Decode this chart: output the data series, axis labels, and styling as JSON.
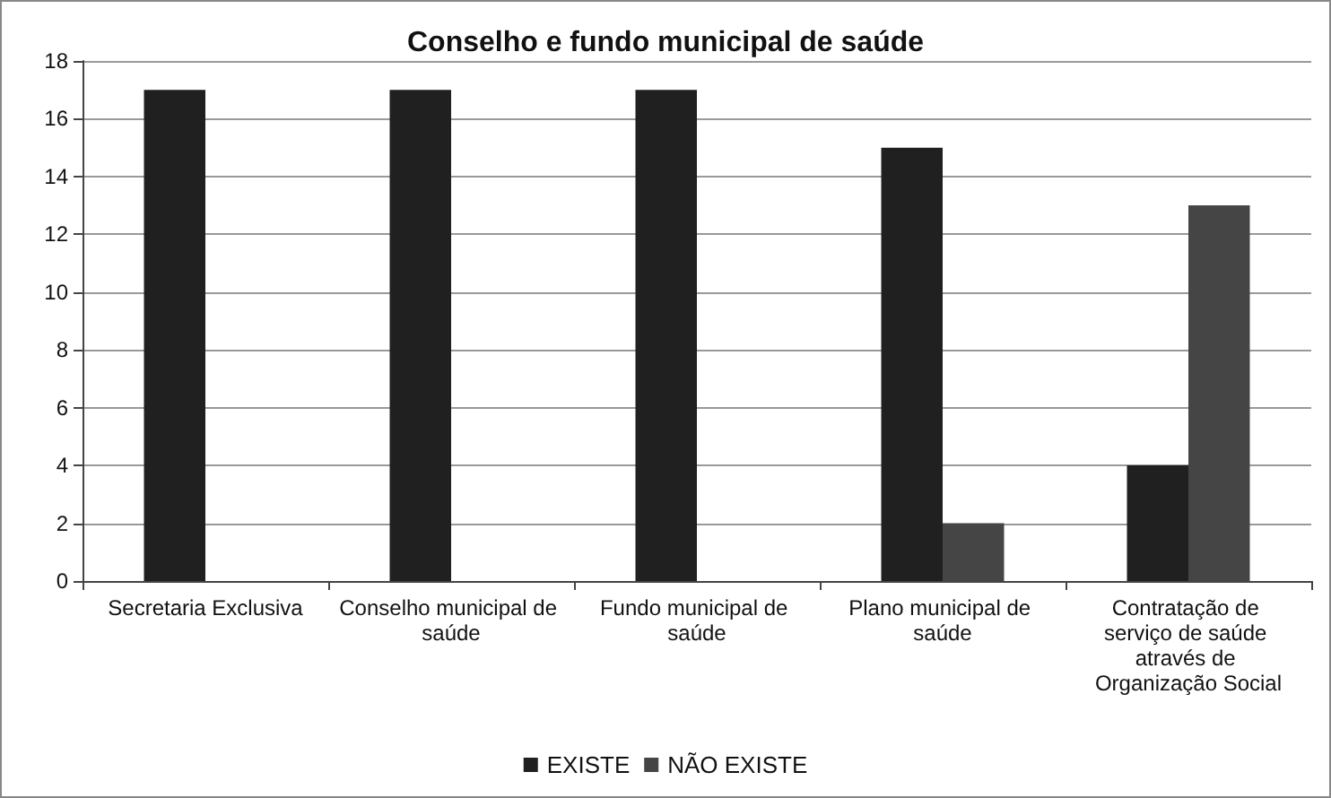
{
  "chart_data": {
    "type": "bar",
    "title": "Conselho e fundo municipal de saúde",
    "categories": [
      "Secretaria Exclusiva",
      "Conselho municipal de saúde",
      "Fundo municipal de saúde",
      "Plano municipal de saúde",
      "Contratação de serviço de saúde através de Organização Social"
    ],
    "series": [
      {
        "name": "EXISTE",
        "color": "#202020",
        "values": [
          17,
          17,
          17,
          15,
          4
        ]
      },
      {
        "name": "NÃO EXISTE",
        "color": "#454545",
        "values": [
          0,
          0,
          0,
          2,
          13
        ]
      }
    ],
    "ylim": [
      0,
      18
    ],
    "yticks": [
      0,
      2,
      4,
      6,
      8,
      10,
      12,
      14,
      16,
      18
    ],
    "grid": "y",
    "legend": "bottom"
  }
}
